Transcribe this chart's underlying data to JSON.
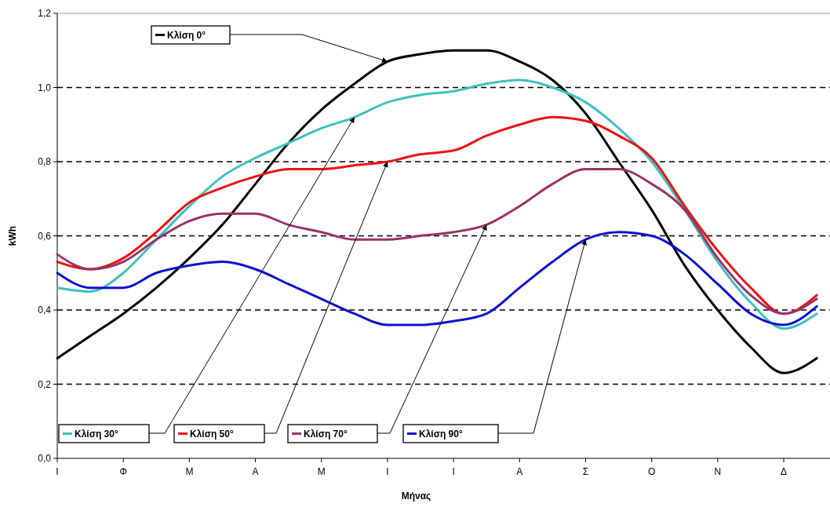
{
  "chart_data": {
    "type": "line",
    "xlabel": "Μήνας",
    "ylabel": "kWh",
    "categories": [
      "Ι",
      null,
      "Φ",
      null,
      "Μ",
      null,
      "Α",
      null,
      "Μ",
      null,
      "Ι",
      null,
      "Ι",
      null,
      "Α",
      null,
      "Σ",
      null,
      "Ο",
      null,
      "Ν",
      null,
      "Δ",
      null
    ],
    "ylim": [
      0,
      1.2
    ],
    "yticks": [
      {
        "value": 0,
        "label": "0,0"
      },
      {
        "value": 0.2,
        "label": "0,2"
      },
      {
        "value": 0.4,
        "label": "0,4"
      },
      {
        "value": 0.6,
        "label": "0,6"
      },
      {
        "value": 0.8,
        "label": "0,8"
      },
      {
        "value": 1,
        "label": "1,0"
      },
      {
        "value": 1.2,
        "label": "1,2"
      }
    ],
    "grid": "y",
    "legend": "top left",
    "line_style": "solid",
    "marker": "none",
    "series": [
      {
        "name": "Κλίση 0°",
        "color": "#000000",
        "values": [
          0.27,
          0.33,
          0.39,
          0.46,
          0.54,
          0.63,
          0.74,
          0.85,
          0.94,
          1.01,
          1.07,
          1.09,
          1.1,
          1.1,
          1.07,
          1.02,
          0.93,
          0.8,
          0.67,
          0.52,
          0.4,
          0.3,
          0.23,
          0.27
        ]
      },
      {
        "name": "Κλίση 30°",
        "color": "#40c0c0",
        "values": [
          0.46,
          0.45,
          0.5,
          0.59,
          0.68,
          0.76,
          0.81,
          0.85,
          0.89,
          0.92,
          0.96,
          0.98,
          0.99,
          1.01,
          1.02,
          1.0,
          0.96,
          0.89,
          0.8,
          0.67,
          0.53,
          0.42,
          0.35,
          0.39
        ]
      },
      {
        "name": "Κλίση 50°",
        "color": "#ee1111",
        "values": [
          0.53,
          0.51,
          0.54,
          0.61,
          0.69,
          0.73,
          0.76,
          0.78,
          0.78,
          0.79,
          0.8,
          0.82,
          0.83,
          0.87,
          0.9,
          0.92,
          0.91,
          0.87,
          0.81,
          0.68,
          0.56,
          0.46,
          0.39,
          0.44
        ]
      },
      {
        "name": "Κλίση 70°",
        "color": "#993366",
        "values": [
          0.55,
          0.51,
          0.53,
          0.59,
          0.64,
          0.66,
          0.66,
          0.63,
          0.61,
          0.59,
          0.59,
          0.6,
          0.61,
          0.63,
          0.68,
          0.74,
          0.78,
          0.78,
          0.74,
          0.67,
          0.54,
          0.44,
          0.39,
          0.43
        ]
      },
      {
        "name": "Κλίση 90°",
        "color": "#1010d0",
        "values": [
          0.5,
          0.46,
          0.46,
          0.5,
          0.52,
          0.53,
          0.51,
          0.47,
          0.43,
          0.39,
          0.36,
          0.36,
          0.37,
          0.39,
          0.46,
          0.53,
          0.59,
          0.61,
          0.6,
          0.55,
          0.47,
          0.39,
          0.36,
          0.41
        ]
      }
    ]
  }
}
